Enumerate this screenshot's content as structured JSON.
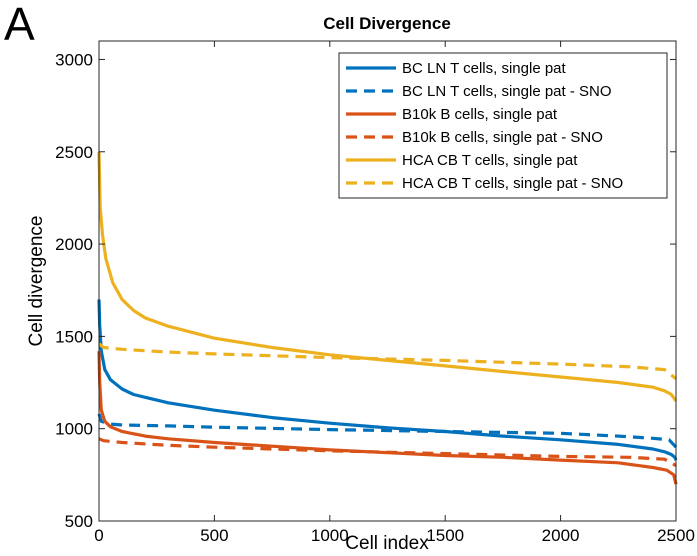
{
  "panel_label": "A",
  "chart_data": {
    "type": "line",
    "title": "Cell Divergence",
    "xlabel": "Cell index",
    "ylabel": "Cell divergence",
    "xlim": [
      0,
      2500
    ],
    "ylim": [
      500,
      3100
    ],
    "xticks": [
      0,
      500,
      1000,
      1500,
      2000,
      2500
    ],
    "yticks": [
      500,
      1000,
      1500,
      2000,
      2500,
      3000
    ],
    "grid": false,
    "legend_position": "top-right",
    "series": [
      {
        "name": "BC LN T cells, single pat",
        "color": "#0072BD",
        "dash": "solid",
        "points": [
          [
            0,
            1700
          ],
          [
            3,
            1560
          ],
          [
            10,
            1420
          ],
          [
            25,
            1320
          ],
          [
            50,
            1265
          ],
          [
            100,
            1215
          ],
          [
            150,
            1185
          ],
          [
            200,
            1170
          ],
          [
            300,
            1140
          ],
          [
            500,
            1100
          ],
          [
            750,
            1060
          ],
          [
            1000,
            1030
          ],
          [
            1250,
            1005
          ],
          [
            1500,
            985
          ],
          [
            1750,
            960
          ],
          [
            2000,
            940
          ],
          [
            2250,
            915
          ],
          [
            2400,
            890
          ],
          [
            2450,
            875
          ],
          [
            2480,
            860
          ],
          [
            2495,
            845
          ],
          [
            2500,
            830
          ]
        ]
      },
      {
        "name": "BC LN T cells, single pat - SNO",
        "color": "#0072BD",
        "dash": "dashed",
        "points": [
          [
            0,
            1080
          ],
          [
            10,
            1040
          ],
          [
            50,
            1025
          ],
          [
            100,
            1020
          ],
          [
            300,
            1015
          ],
          [
            500,
            1008
          ],
          [
            1000,
            995
          ],
          [
            1500,
            985
          ],
          [
            2000,
            975
          ],
          [
            2250,
            960
          ],
          [
            2400,
            948
          ],
          [
            2470,
            940
          ],
          [
            2500,
            900
          ]
        ]
      },
      {
        "name": "B10k B cells, single pat",
        "color": "#D95319",
        "dash": "solid",
        "points": [
          [
            0,
            1420
          ],
          [
            3,
            1250
          ],
          [
            10,
            1100
          ],
          [
            25,
            1040
          ],
          [
            50,
            1010
          ],
          [
            100,
            985
          ],
          [
            200,
            960
          ],
          [
            300,
            945
          ],
          [
            500,
            925
          ],
          [
            750,
            905
          ],
          [
            1000,
            885
          ],
          [
            1250,
            870
          ],
          [
            1500,
            855
          ],
          [
            1750,
            845
          ],
          [
            2000,
            830
          ],
          [
            2250,
            815
          ],
          [
            2400,
            790
          ],
          [
            2460,
            775
          ],
          [
            2490,
            750
          ],
          [
            2500,
            700
          ]
        ]
      },
      {
        "name": "B10k B cells, single pat - SNO",
        "color": "#D95319",
        "dash": "dashed",
        "points": [
          [
            0,
            945
          ],
          [
            20,
            935
          ],
          [
            100,
            925
          ],
          [
            300,
            910
          ],
          [
            500,
            900
          ],
          [
            1000,
            880
          ],
          [
            1500,
            865
          ],
          [
            2000,
            850
          ],
          [
            2300,
            845
          ],
          [
            2450,
            835
          ],
          [
            2500,
            800
          ]
        ]
      },
      {
        "name": "HCA CB T cells, single pat",
        "color": "#EDB120",
        "dash": "solid",
        "points": [
          [
            0,
            2500
          ],
          [
            5,
            2200
          ],
          [
            15,
            2050
          ],
          [
            30,
            1920
          ],
          [
            60,
            1790
          ],
          [
            100,
            1700
          ],
          [
            150,
            1640
          ],
          [
            200,
            1600
          ],
          [
            300,
            1555
          ],
          [
            500,
            1490
          ],
          [
            750,
            1440
          ],
          [
            1000,
            1400
          ],
          [
            1250,
            1370
          ],
          [
            1500,
            1340
          ],
          [
            1750,
            1310
          ],
          [
            2000,
            1280
          ],
          [
            2250,
            1250
          ],
          [
            2400,
            1225
          ],
          [
            2450,
            1205
          ],
          [
            2480,
            1185
          ],
          [
            2500,
            1150
          ]
        ]
      },
      {
        "name": "HCA CB T cells, single pat - SNO",
        "color": "#EDB120",
        "dash": "dashed",
        "points": [
          [
            0,
            1460
          ],
          [
            20,
            1440
          ],
          [
            100,
            1430
          ],
          [
            300,
            1415
          ],
          [
            500,
            1405
          ],
          [
            1000,
            1385
          ],
          [
            1500,
            1370
          ],
          [
            2000,
            1350
          ],
          [
            2300,
            1335
          ],
          [
            2450,
            1320
          ],
          [
            2500,
            1270
          ]
        ]
      }
    ]
  }
}
